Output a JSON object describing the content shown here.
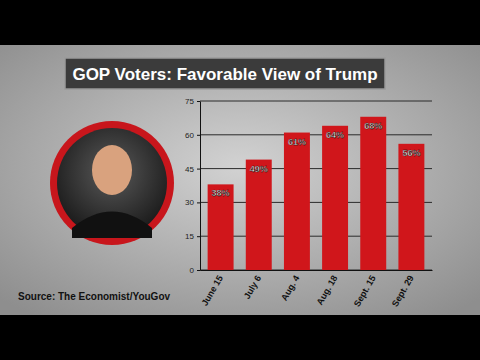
{
  "chart_data": {
    "type": "bar",
    "title": "GOP Voters: Favorable View of Trump",
    "source": "Source: The Economist/YouGov",
    "categories": [
      "June 15",
      "July 6",
      "Aug. 4",
      "Aug. 18",
      "Sept. 15",
      "Sept. 29"
    ],
    "values": [
      38,
      49,
      61,
      64,
      68,
      56
    ],
    "value_labels": [
      "38%",
      "49%",
      "61%",
      "64%",
      "68%",
      "56%"
    ],
    "color": "#d0161b",
    "ylim": [
      0,
      75
    ],
    "yticks": [
      0,
      15,
      30,
      45,
      60,
      75
    ],
    "grid": true,
    "data_labels": true
  }
}
